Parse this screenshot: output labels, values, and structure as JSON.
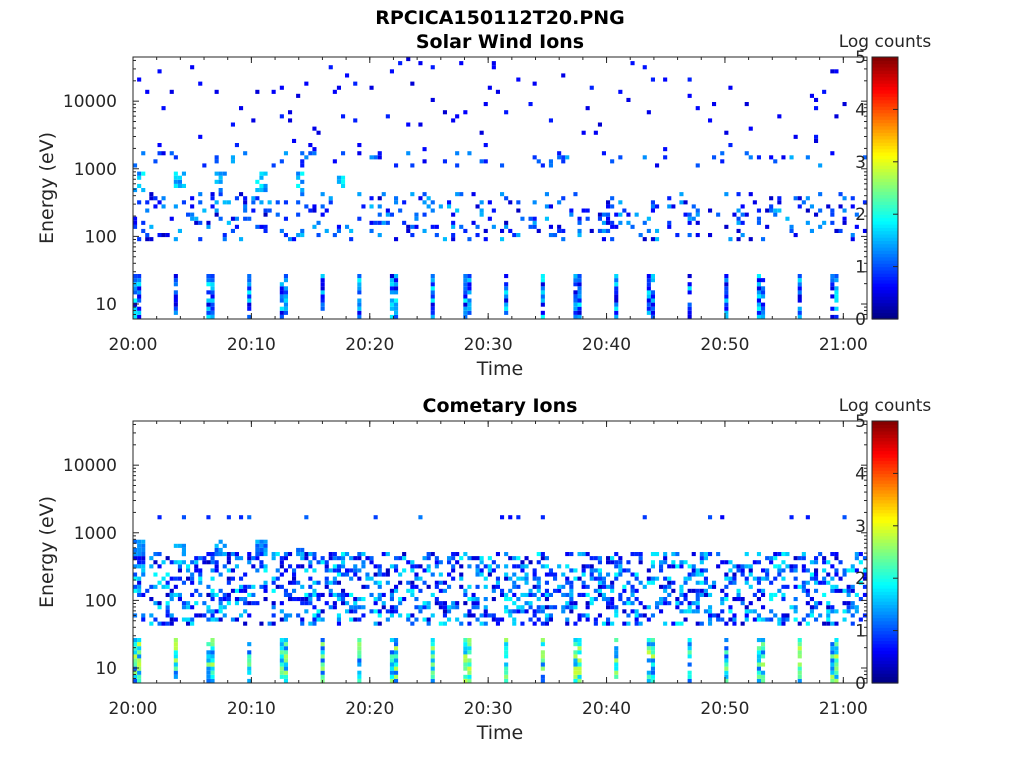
{
  "figure": {
    "title": "RPCICA150112T20.PNG"
  },
  "chart_data": [
    {
      "type": "heatmap",
      "title": "Solar Wind Ions",
      "xlabel": "Time",
      "ylabel": "Energy (eV)",
      "x_tick_labels": [
        "20:00",
        "20:10",
        "20:20",
        "20:30",
        "20:40",
        "20:50",
        "21:00"
      ],
      "y_tick_labels": [
        "10",
        "100",
        "1000",
        "10000"
      ],
      "y_scale": "log",
      "ylim": [
        6,
        45000
      ],
      "xlim": [
        "20:00",
        "21:02"
      ],
      "colorbar_label": "Log counts",
      "colorbar_ticks": [
        "0",
        "1",
        "2",
        "3",
        "4",
        "5"
      ],
      "clim": [
        0,
        5
      ],
      "colormap": "jet",
      "features": [
        {
          "energy_band": [
            6,
            25
          ],
          "time_band": [
            "20:00",
            "21:02"
          ],
          "log_counts": [
            0.4,
            1.9
          ],
          "pattern": "periodic, ~3 min"
        },
        {
          "energy_band": [
            80,
            400
          ],
          "time_band": [
            "20:00",
            "21:02"
          ],
          "log_counts": [
            0.3,
            1.6
          ],
          "pattern": "scattered"
        },
        {
          "energy_band": [
            400,
            800
          ],
          "time_band": [
            "20:00",
            "20:18"
          ],
          "log_counts": [
            1.2,
            1.9
          ],
          "pattern": "sporadic blobs"
        },
        {
          "energy_band": [
            1000,
            1600
          ],
          "time_band": [
            "20:00",
            "21:02"
          ],
          "log_counts": [
            0.5,
            1.5
          ],
          "pattern": "sparse"
        },
        {
          "energy_band": [
            1600,
            45000
          ],
          "time_band": [
            "20:00",
            "21:02"
          ],
          "log_counts": [
            0.4,
            0.8
          ],
          "pattern": "sparse noise"
        }
      ]
    },
    {
      "type": "heatmap",
      "title": "Cometary Ions",
      "xlabel": "Time",
      "ylabel": "Energy (eV)",
      "x_tick_labels": [
        "20:00",
        "20:10",
        "20:20",
        "20:30",
        "20:40",
        "20:50",
        "21:00"
      ],
      "y_tick_labels": [
        "10",
        "100",
        "1000",
        "10000"
      ],
      "y_scale": "log",
      "ylim": [
        6,
        45000
      ],
      "xlim": [
        "20:00",
        "21:02"
      ],
      "colorbar_label": "Log counts",
      "colorbar_ticks": [
        "0",
        "1",
        "2",
        "3",
        "4",
        "5"
      ],
      "clim": [
        0,
        5
      ],
      "colormap": "jet",
      "features": [
        {
          "energy_band": [
            6,
            25
          ],
          "time_band": [
            "20:00",
            "21:02"
          ],
          "log_counts": [
            1.0,
            2.9
          ],
          "pattern": "periodic, ~3 min"
        },
        {
          "energy_band": [
            40,
            500
          ],
          "time_band": [
            "20:00",
            "21:02"
          ],
          "log_counts": [
            0.3,
            1.9
          ],
          "pattern": "dense scattered"
        },
        {
          "energy_band": [
            400,
            700
          ],
          "time_band": [
            "20:00",
            "20:15"
          ],
          "log_counts": [
            1.0,
            1.6
          ],
          "pattern": "sporadic blobs"
        },
        {
          "energy_band": [
            1400,
            1700
          ],
          "time_band": [
            "20:00",
            "21:02"
          ],
          "log_counts": [
            0.4,
            1.3
          ],
          "pattern": "sparse"
        }
      ]
    }
  ]
}
